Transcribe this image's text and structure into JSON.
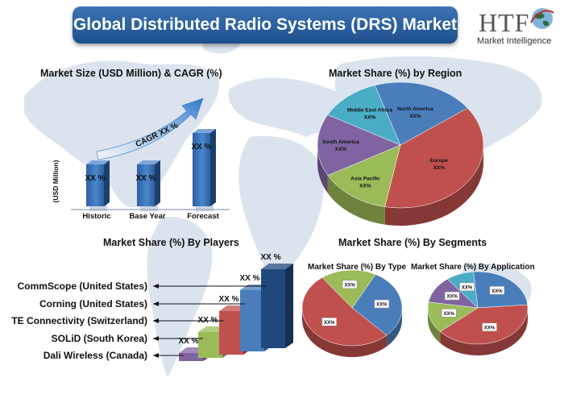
{
  "header": {
    "title": "Global Distributed Radio Systems (DRS) Market"
  },
  "logo": {
    "main": "HTF",
    "sub": "Market Intelligence"
  },
  "colors": {
    "banner": "#2a5c9c",
    "blue": "#4a7ebb",
    "red": "#c0504d",
    "green": "#9bbb59",
    "purple": "#8064a2",
    "teal": "#4bacc6",
    "navy": "#1f497d"
  },
  "sections": {
    "size": "Market Size (USD Million) & CAGR (%)",
    "region": "Market Share (%) by Region",
    "players": "Market Share (%) By Players",
    "segments": "Market Share (%) By Segments",
    "by_type": "Market Share (%) By Type",
    "by_app": "Market Share (%) By Application"
  },
  "chart_data": [
    {
      "type": "bar",
      "title": "Market Size (USD Million) & CAGR (%)",
      "ylabel": "(USD Million)",
      "categories": [
        "Historic",
        "Base Year",
        "Forecast"
      ],
      "values": [
        2,
        2,
        3.5
      ],
      "data_labels": [
        "XX %",
        "XX %",
        "XX %"
      ],
      "annotation": "CAGR XX %"
    },
    {
      "type": "pie",
      "title": "Market Share (%) by Region",
      "labels": [
        "North America",
        "Europe",
        "Asia Pacific",
        "South America",
        "Middle East Africa"
      ],
      "values": [
        20,
        38,
        14,
        16,
        12
      ],
      "data_labels": [
        "XX%",
        "XX%",
        "XX%",
        "XX%",
        "XX%"
      ],
      "colors": [
        "#4a7ebb",
        "#c0504d",
        "#9bbb59",
        "#8064a2",
        "#4bacc6"
      ]
    },
    {
      "type": "bar",
      "title": "Market Share (%) By Players",
      "categories": [
        "CommScope (United States)",
        "Corning (United States)",
        "TE Connectivity (Switzerland)",
        "SOLiD (South Korea)",
        "Dali Wireless (Canada)"
      ],
      "values": [
        5,
        4,
        3,
        2,
        1
      ],
      "data_labels": [
        "XX %",
        "XX %",
        "XX %",
        "XX %",
        "XX %"
      ]
    },
    {
      "type": "pie",
      "title": "Market Share (%) By Type",
      "values": [
        30,
        52,
        18
      ],
      "data_labels": [
        "XX%",
        "XX%",
        "XX%"
      ],
      "colors": [
        "#4a7ebb",
        "#c0504d",
        "#9bbb59"
      ]
    },
    {
      "type": "pie",
      "title": "Market Share (%) By Application",
      "values": [
        25,
        40,
        14,
        12,
        9
      ],
      "data_labels": [
        "XX%",
        "XX%",
        "XX%",
        "XX%",
        "XX%"
      ],
      "colors": [
        "#4a7ebb",
        "#c0504d",
        "#9bbb59",
        "#8064a2",
        "#4bacc6"
      ]
    }
  ]
}
